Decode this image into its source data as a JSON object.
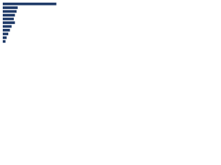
{
  "chart_data": {
    "type": "barh",
    "categories": [
      null,
      null,
      null,
      null,
      null,
      null,
      null,
      null,
      null,
      null,
      null
    ],
    "values": [
      97,
      27,
      25,
      22,
      20,
      22,
      16,
      13,
      10,
      7,
      5
    ],
    "color": "#1f3a68",
    "xlim": [
      0,
      100
    ]
  }
}
